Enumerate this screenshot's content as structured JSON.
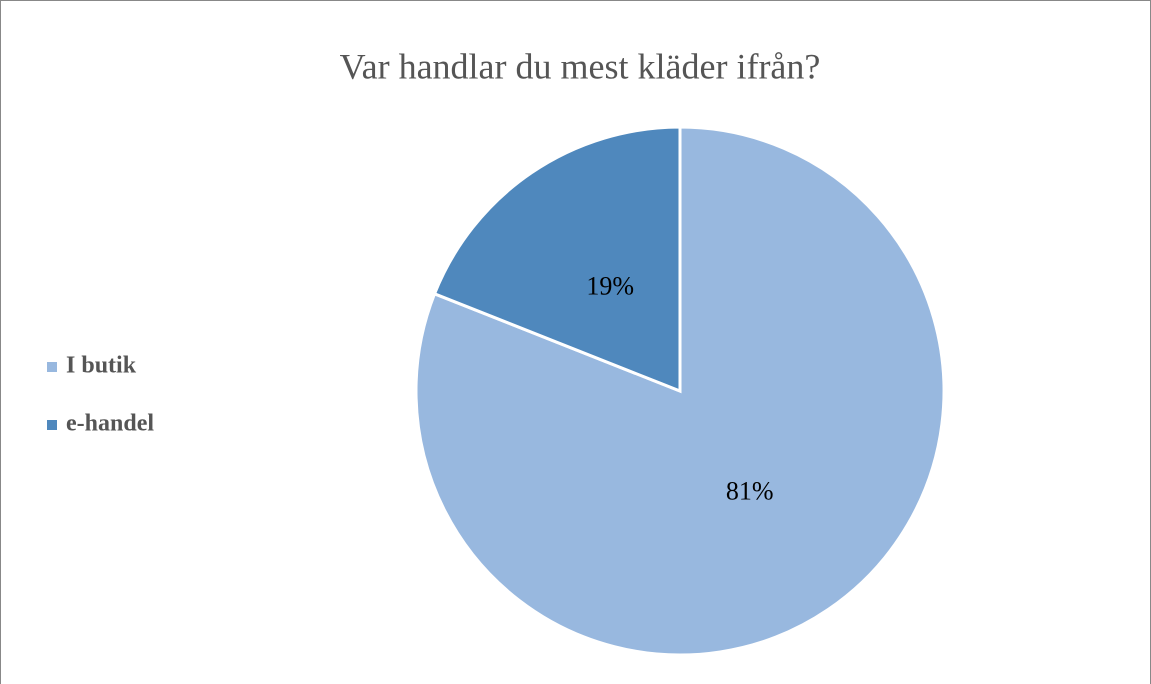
{
  "chart_data": {
    "type": "pie",
    "title": "Var handlar du mest kläder ifrån?",
    "categories": [
      "I butik",
      "e-handel"
    ],
    "values": [
      81,
      19
    ],
    "value_labels": [
      "81%",
      "19%"
    ],
    "colors": [
      "#98b8df",
      "#4f88bd"
    ],
    "legend": "left"
  }
}
